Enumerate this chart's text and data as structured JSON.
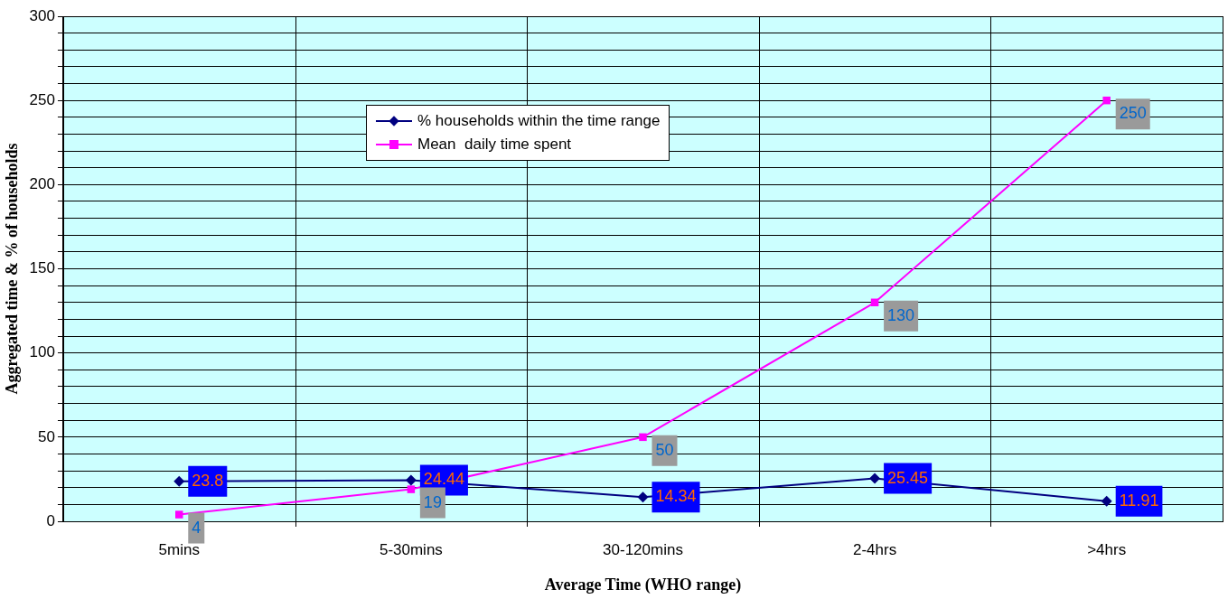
{
  "chart_data": {
    "type": "line",
    "xlabel": "Average Time (WHO range)",
    "ylabel": "Aggregated time & % of households",
    "categories": [
      "5mins",
      "5-30mins",
      "30-120mins",
      "2-4hrs",
      ">4hrs"
    ],
    "series": [
      {
        "name": "% households within the time range",
        "color": "#000080",
        "marker": "diamond",
        "values": [
          23.8,
          24.44,
          14.34,
          25.45,
          11.91
        ]
      },
      {
        "name": "Mean  daily time spent",
        "color": "#ff00ff",
        "marker": "square",
        "values": [
          4,
          19,
          50,
          130,
          250
        ]
      }
    ],
    "ylim": [
      0,
      300
    ],
    "yticks": [
      0,
      {
        "value": 10,
        "label": null
      },
      {
        "value": 20,
        "label": null
      },
      {
        "value": 30,
        "label": null
      },
      {
        "value": 40,
        "label": null
      },
      50,
      {
        "value": 60,
        "label": null
      },
      {
        "value": 70,
        "label": null
      },
      {
        "value": 80,
        "label": null
      },
      {
        "value": 90,
        "label": null
      },
      100,
      {
        "value": 110,
        "label": null
      },
      {
        "value": 120,
        "label": null
      },
      {
        "value": 130,
        "label": null
      },
      {
        "value": 140,
        "label": null
      },
      150,
      {
        "value": 160,
        "label": null
      },
      {
        "value": 170,
        "label": null
      },
      {
        "value": 180,
        "label": null
      },
      {
        "value": 190,
        "label": null
      },
      200,
      {
        "value": 210,
        "label": null
      },
      {
        "value": 220,
        "label": null
      },
      {
        "value": 230,
        "label": null
      },
      {
        "value": 240,
        "label": null
      },
      250,
      {
        "value": 260,
        "label": null
      },
      {
        "value": 270,
        "label": null
      },
      {
        "value": 280,
        "label": null
      },
      {
        "value": 290,
        "label": null
      },
      300
    ],
    "grid": true,
    "legend": "top",
    "data_labels": true,
    "line_style": "solid"
  }
}
